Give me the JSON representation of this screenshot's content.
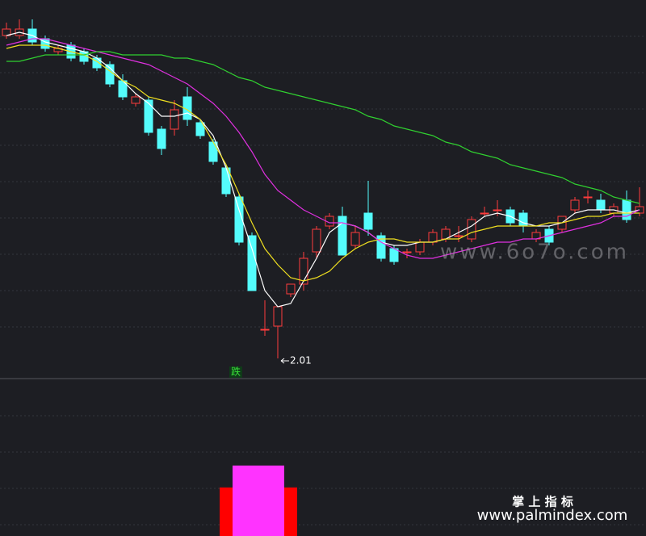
{
  "chart_data": [
    {
      "type": "candlestick",
      "open": [
        3.01,
        3.01,
        3.03,
        3.0,
        2.96,
        2.98,
        2.96,
        2.94,
        2.92,
        2.87,
        2.8,
        2.81,
        2.72,
        2.72,
        2.82,
        2.74,
        2.68,
        2.6,
        2.51,
        2.39,
        2.1,
        2.11,
        2.21,
        2.24,
        2.34,
        2.42,
        2.45,
        2.36,
        2.46,
        2.39,
        2.35,
        2.34,
        2.34,
        2.37,
        2.38,
        2.39,
        2.38,
        2.46,
        2.47,
        2.47,
        2.46,
        2.38,
        2.41,
        2.41,
        2.47,
        2.51,
        2.5,
        2.46,
        2.5,
        2.46
      ],
      "high": [
        3.05,
        3.06,
        3.06,
        3.01,
        2.98,
        2.99,
        2.97,
        2.95,
        2.93,
        2.89,
        2.83,
        2.82,
        2.73,
        2.81,
        2.85,
        2.75,
        2.69,
        2.61,
        2.52,
        2.4,
        2.19,
        2.17,
        2.24,
        2.34,
        2.42,
        2.46,
        2.48,
        2.42,
        2.56,
        2.4,
        2.36,
        2.35,
        2.38,
        2.41,
        2.42,
        2.42,
        2.45,
        2.48,
        2.5,
        2.48,
        2.47,
        2.41,
        2.42,
        2.45,
        2.51,
        2.53,
        2.52,
        2.49,
        2.53,
        2.54
      ],
      "low": [
        3.0,
        3.0,
        2.98,
        2.96,
        2.95,
        2.93,
        2.92,
        2.9,
        2.85,
        2.81,
        2.79,
        2.7,
        2.64,
        2.7,
        2.73,
        2.69,
        2.61,
        2.51,
        2.36,
        2.22,
        2.08,
        2.01,
        2.2,
        2.22,
        2.32,
        2.41,
        2.33,
        2.35,
        2.39,
        2.31,
        2.3,
        2.32,
        2.33,
        2.36,
        2.37,
        2.37,
        2.37,
        2.45,
        2.45,
        2.42,
        2.4,
        2.37,
        2.36,
        2.4,
        2.46,
        2.49,
        2.46,
        2.45,
        2.43,
        2.45
      ],
      "close": [
        3.03,
        3.03,
        2.99,
        2.97,
        2.97,
        2.94,
        2.93,
        2.91,
        2.86,
        2.82,
        2.82,
        2.71,
        2.66,
        2.78,
        2.75,
        2.7,
        2.62,
        2.52,
        2.37,
        2.22,
        2.1,
        2.17,
        2.24,
        2.32,
        2.41,
        2.45,
        2.33,
        2.4,
        2.41,
        2.32,
        2.31,
        2.34,
        2.37,
        2.4,
        2.41,
        2.39,
        2.44,
        2.46,
        2.47,
        2.43,
        2.42,
        2.4,
        2.37,
        2.45,
        2.5,
        2.51,
        2.47,
        2.48,
        2.44,
        2.48
      ],
      "up_color": "#ff3c3c",
      "down_color": "#54fcfc",
      "ylim": [
        1.95,
        3.12
      ],
      "signal": "跌",
      "series": [
        {
          "color": "#ffffff",
          "values": [
            3.01,
            3.02,
            3.01,
            2.99,
            2.98,
            2.97,
            2.96,
            2.94,
            2.91,
            2.87,
            2.83,
            2.8,
            2.76,
            2.76,
            2.77,
            2.75,
            2.7,
            2.6,
            2.47,
            2.35,
            2.22,
            2.17,
            2.18,
            2.25,
            2.32,
            2.4,
            2.43,
            2.42,
            2.4,
            2.37,
            2.36,
            2.36,
            2.37,
            2.37,
            2.38,
            2.4,
            2.42,
            2.45,
            2.46,
            2.45,
            2.43,
            2.42,
            2.42,
            2.43,
            2.46,
            2.47,
            2.47,
            2.47,
            2.46,
            2.47
          ]
        },
        {
          "color": "#f0e020",
          "values": [
            2.97,
            2.98,
            2.98,
            2.98,
            2.97,
            2.96,
            2.95,
            2.93,
            2.9,
            2.87,
            2.85,
            2.82,
            2.81,
            2.8,
            2.78,
            2.75,
            2.68,
            2.61,
            2.52,
            2.43,
            2.35,
            2.3,
            2.26,
            2.25,
            2.26,
            2.28,
            2.32,
            2.35,
            2.37,
            2.38,
            2.38,
            2.37,
            2.37,
            2.37,
            2.38,
            2.38,
            2.4,
            2.41,
            2.42,
            2.42,
            2.42,
            2.42,
            2.43,
            2.43,
            2.44,
            2.45,
            2.45,
            2.46,
            2.46,
            2.46
          ]
        },
        {
          "color": "#e030e0",
          "values": [
            2.98,
            2.99,
            3.0,
            3.0,
            2.99,
            2.98,
            2.97,
            2.96,
            2.95,
            2.94,
            2.93,
            2.92,
            2.9,
            2.88,
            2.86,
            2.83,
            2.8,
            2.76,
            2.71,
            2.65,
            2.58,
            2.53,
            2.5,
            2.47,
            2.45,
            2.43,
            2.43,
            2.42,
            2.4,
            2.37,
            2.35,
            2.33,
            2.32,
            2.32,
            2.33,
            2.34,
            2.35,
            2.36,
            2.37,
            2.37,
            2.38,
            2.38,
            2.39,
            2.4,
            2.41,
            2.42,
            2.43,
            2.45,
            2.45,
            2.47
          ]
        },
        {
          "color": "#30d030",
          "values": [
            2.93,
            2.93,
            2.94,
            2.95,
            2.95,
            2.95,
            2.95,
            2.96,
            2.96,
            2.95,
            2.95,
            2.95,
            2.95,
            2.94,
            2.94,
            2.93,
            2.92,
            2.9,
            2.88,
            2.87,
            2.85,
            2.84,
            2.83,
            2.82,
            2.81,
            2.8,
            2.79,
            2.78,
            2.76,
            2.75,
            2.73,
            2.72,
            2.71,
            2.7,
            2.68,
            2.67,
            2.65,
            2.64,
            2.63,
            2.61,
            2.6,
            2.59,
            2.58,
            2.57,
            2.55,
            2.54,
            2.53,
            2.51,
            2.5,
            2.49
          ]
        }
      ]
    },
    {
      "type": "bar",
      "ylim": [
        0,
        100
      ],
      "series": [
        {
          "color": "#ff0000",
          "values": [
            0,
            0,
            0,
            0,
            0,
            0,
            0,
            0,
            0,
            0,
            0,
            0,
            0,
            0,
            0,
            0,
            0,
            31,
            31,
            31,
            31,
            31,
            31,
            0,
            0,
            0,
            0,
            0,
            0,
            0,
            0,
            0,
            0,
            0,
            0,
            0,
            0,
            0,
            0,
            0,
            0,
            0,
            0,
            0,
            0,
            0,
            0,
            0,
            0,
            0
          ]
        },
        {
          "color": "#ff33ff",
          "values": [
            0,
            0,
            0,
            0,
            0,
            0,
            0,
            0,
            0,
            0,
            0,
            0,
            0,
            0,
            0,
            0,
            0,
            0,
            45,
            45,
            45,
            45,
            0,
            0,
            0,
            0,
            0,
            0,
            0,
            0,
            0,
            0,
            0,
            0,
            0,
            0,
            0,
            0,
            0,
            0,
            0,
            0,
            0,
            0,
            0,
            0,
            0,
            0,
            0,
            0
          ]
        }
      ]
    }
  ],
  "watermark": "www.6o7o.com",
  "footer": {
    "brand": "掌 上 指 标",
    "url": "www.palmindex.com"
  }
}
